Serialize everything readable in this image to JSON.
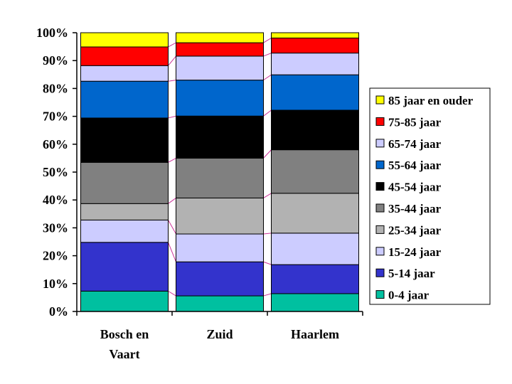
{
  "chart_data": {
    "type": "bar",
    "stacked": "percent",
    "categories": [
      [
        "Bosch en",
        "Vaart"
      ],
      [
        "Zuid"
      ],
      [
        "Haarlem"
      ]
    ],
    "y_ticks": [
      "0%",
      "10%",
      "20%",
      "30%",
      "40%",
      "50%",
      "60%",
      "70%",
      "80%",
      "90%",
      "100%"
    ],
    "ylim": [
      0,
      100
    ],
    "legend_position": "right",
    "series": [
      {
        "name": "0-4 jaar",
        "color": "#00c0a0",
        "values": [
          7.3,
          5.6,
          6.4
        ]
      },
      {
        "name": "5-14 jaar",
        "color": "#3333cc",
        "values": [
          17.5,
          12.2,
          10.4
        ]
      },
      {
        "name": "15-24 jaar",
        "color": "#ccccff",
        "values": [
          8.0,
          10.0,
          11.3
        ]
      },
      {
        "name": "25-34 jaar",
        "color": "#b2b2b2",
        "values": [
          5.9,
          12.9,
          14.3
        ]
      },
      {
        "name": "35-44 jaar",
        "color": "#808080",
        "values": [
          14.8,
          14.3,
          15.6
        ]
      },
      {
        "name": "45-54 jaar",
        "color": "#000000",
        "values": [
          15.9,
          15.1,
          14.2
        ]
      },
      {
        "name": "55-64 jaar",
        "color": "#0066cc",
        "values": [
          13.2,
          12.9,
          12.7
        ]
      },
      {
        "name": "65-74 jaar",
        "color": "#ccccff",
        "values": [
          5.6,
          8.6,
          7.8
        ]
      },
      {
        "name": "75-85 jaar",
        "color": "#ff0000",
        "values": [
          6.7,
          4.8,
          5.4
        ]
      },
      {
        "name": "85 jaar en ouder",
        "color": "#ffff00",
        "values": [
          5.1,
          3.6,
          1.9
        ]
      }
    ],
    "series_line_color": "#cc3399"
  }
}
